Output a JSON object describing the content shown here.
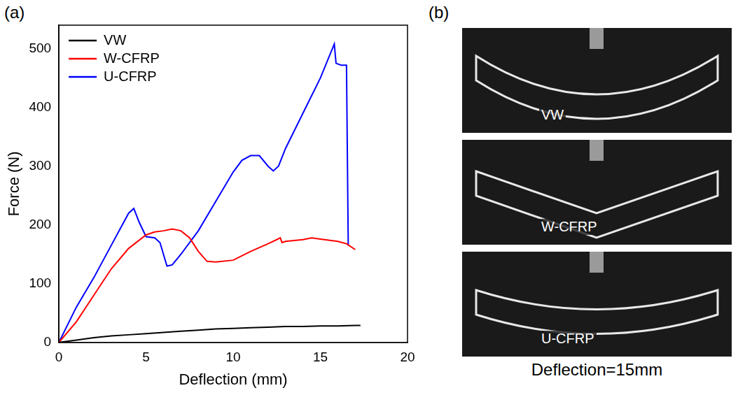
{
  "chart_data": {
    "type": "line",
    "panel_label": "(a)",
    "x_label": "Deflection (mm)",
    "y_label": "Force (N)",
    "xlim": [
      0,
      20
    ],
    "xticks": [
      0,
      5,
      10,
      15,
      20
    ],
    "ylim": [
      0,
      540
    ],
    "yticks": [
      0,
      100,
      200,
      300,
      400,
      500
    ],
    "grid": false,
    "legend": "upper left",
    "series": [
      {
        "name": "VW",
        "color": "#000000",
        "x": [
          0,
          1,
          2,
          3,
          4,
          5,
          6,
          7,
          8,
          9,
          10,
          11,
          12,
          13,
          14,
          15,
          16,
          17,
          17.3
        ],
        "values": [
          0,
          4,
          8,
          11,
          13,
          15,
          17,
          19,
          21,
          23,
          24,
          25,
          26,
          27,
          27,
          28,
          28,
          29,
          29
        ]
      },
      {
        "name": "W-CFRP",
        "color": "#ff0000",
        "x": [
          0,
          1,
          2,
          3,
          4,
          5,
          5.5,
          6,
          6.5,
          7,
          7.5,
          8,
          8.5,
          9,
          10,
          11,
          12,
          12.5,
          12.7,
          12.8,
          13,
          14,
          14.5,
          15,
          16,
          16.5,
          17
        ],
        "values": [
          0,
          35,
          80,
          125,
          160,
          183,
          188,
          190,
          193,
          190,
          178,
          155,
          138,
          137,
          140,
          155,
          168,
          175,
          178,
          170,
          172,
          175,
          178,
          176,
          172,
          168,
          158
        ]
      },
      {
        "name": "U-CFRP",
        "color": "#0000ff",
        "x": [
          0,
          1,
          2,
          3,
          4,
          4.3,
          4.6,
          5,
          5.5,
          5.8,
          6.2,
          6.5,
          7,
          8,
          9,
          10,
          10.5,
          11,
          11.5,
          12,
          12.3,
          12.6,
          13,
          14,
          15,
          15.8,
          15.9,
          16.2,
          16.5,
          16.6
        ],
        "values": [
          0,
          60,
          110,
          165,
          220,
          228,
          205,
          180,
          178,
          170,
          130,
          132,
          150,
          190,
          240,
          290,
          310,
          318,
          318,
          300,
          292,
          300,
          330,
          390,
          450,
          508,
          475,
          472,
          472,
          165
        ]
      }
    ]
  },
  "panel_b": {
    "panel_label": "(b)",
    "photos": [
      "VW",
      "W-CFRP",
      "U-CFRP"
    ],
    "caption": "Deflection=15mm"
  }
}
